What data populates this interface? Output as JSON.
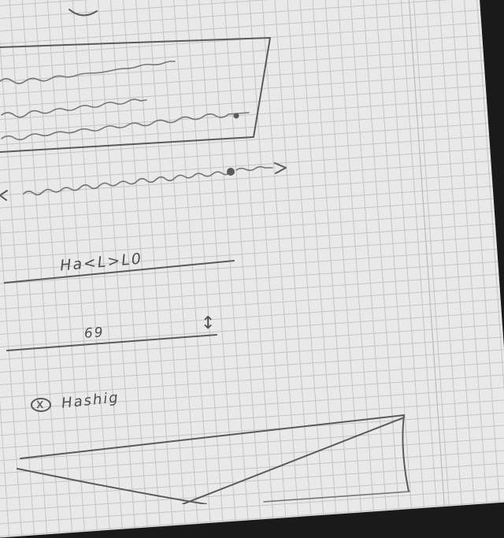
{
  "text_field": {
    "value": "Ha<L>L0"
  },
  "number_field": {
    "value": "69",
    "stepper_glyph": "↕"
  },
  "checkbox": {
    "checked": true,
    "mark": "x",
    "label": "Hashig"
  },
  "slider": {
    "left_arrow": "<",
    "right_arrow": ">",
    "value_fraction": 0.82
  },
  "colors": {
    "paper": "#e9e9e9",
    "grid": "#c5c5c5",
    "pencil": "#5a5a5a",
    "background": "#1a1a1a"
  }
}
